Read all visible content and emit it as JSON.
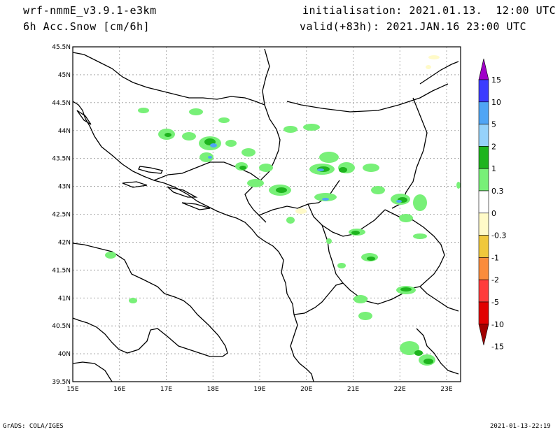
{
  "header": {
    "model": "wrf-nmmE_v3.9.1-e3km",
    "field": "6h Acc.Snow [cm/6h]",
    "initialisation": "initialisation: 2021.01.13.  12:00 UTC",
    "valid": "valid(+83h): 2021.JAN.16 23:00 UTC"
  },
  "footer": {
    "left": "GrADS: COLA/IGES",
    "right": "2021-01-13-22:19"
  },
  "map": {
    "lon_range": [
      15,
      23.3
    ],
    "lat_range": [
      39.5,
      45.5
    ],
    "lon_ticks": [
      "15E",
      "16E",
      "17E",
      "18E",
      "19E",
      "20E",
      "21E",
      "22E",
      "23E"
    ],
    "lat_ticks": [
      "39.5N",
      "40N",
      "40.5N",
      "41N",
      "41.5N",
      "42N",
      "42.5N",
      "43N",
      "43.5N",
      "44N",
      "44.5N",
      "45N",
      "45.5N"
    ]
  },
  "legend": {
    "labels": [
      "15",
      "10",
      "5",
      "2",
      "1",
      "0.3",
      "0",
      "-0.3",
      "-1",
      "-2",
      "-5",
      "-10",
      "-15"
    ],
    "colors": [
      "#a000c8",
      "#3c3cff",
      "#50a5f5",
      "#96d2fa",
      "#1eb41e",
      "#78f078",
      "#ffffff",
      "#fffac8",
      "#f0c83c",
      "#fa8c3c",
      "#ff3c3c",
      "#e10000",
      "#a00000"
    ]
  }
}
